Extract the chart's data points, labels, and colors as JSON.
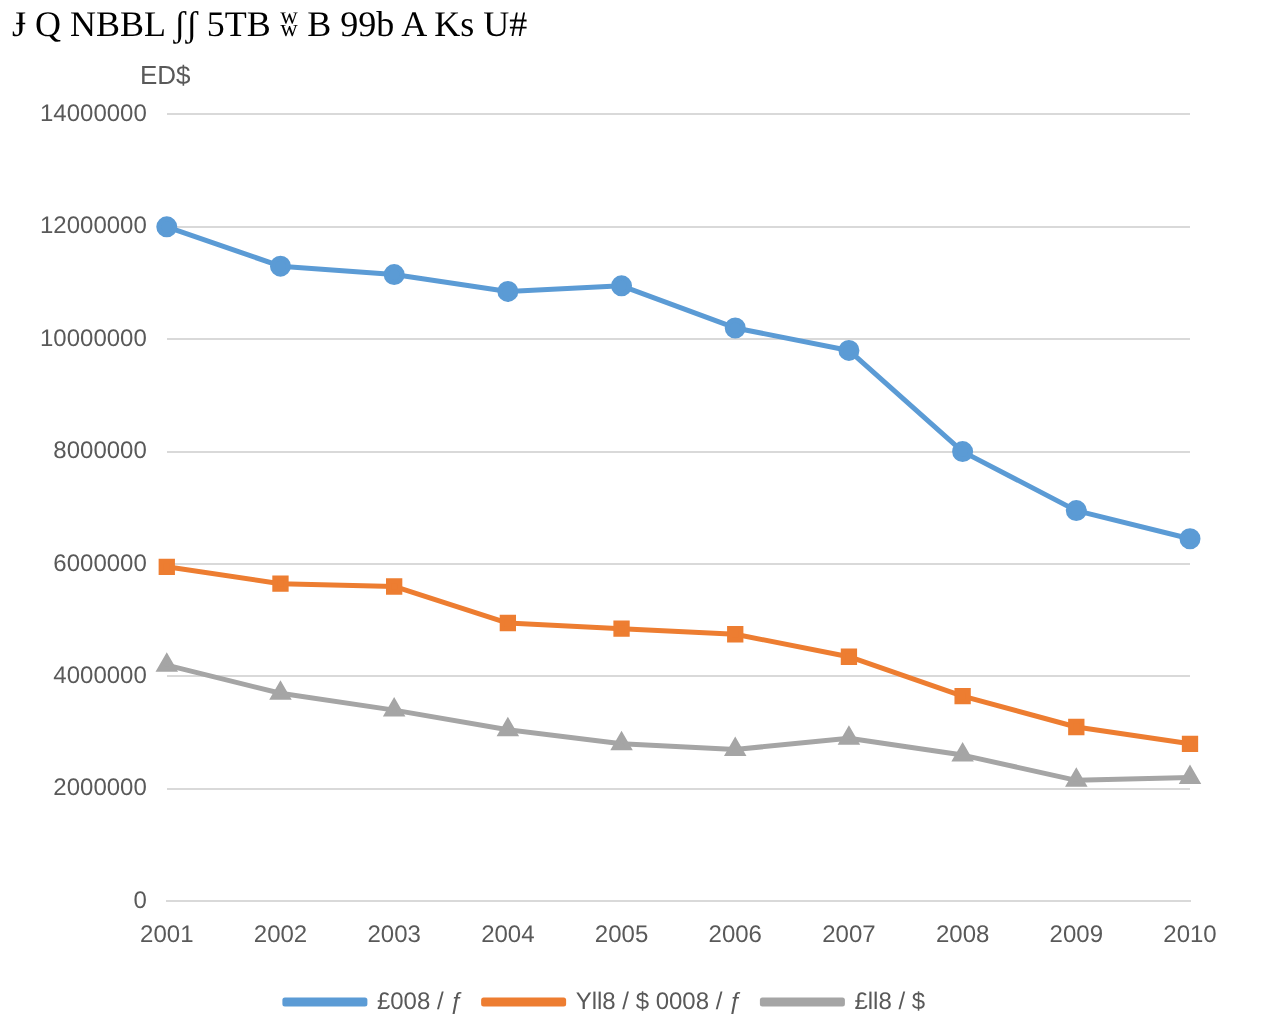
{
  "chart_data": {
    "type": "line",
    "title": "Ɉ Q NBBL ʃʃ 5TB ʬ B 99b A Ks U#",
    "ylabel": "ED$",
    "categories": [
      "2001",
      "2002",
      "2003",
      "2004",
      "2005",
      "2006",
      "2007",
      "2008",
      "2009",
      "2010"
    ],
    "series": [
      {
        "name": "£008 / ƒ",
        "color": "#5b9bd5",
        "marker": "circle",
        "values": [
          12000000,
          11300000,
          11150000,
          10850000,
          10950000,
          10200000,
          9800000,
          8000000,
          6950000,
          6450000
        ]
      },
      {
        "name": "Yll8 / $ 0008 / ƒ",
        "color": "#ed7d31",
        "marker": "square",
        "values": [
          5950000,
          5650000,
          5600000,
          4950000,
          4850000,
          4750000,
          4350000,
          3650000,
          3100000,
          2800000
        ]
      },
      {
        "name": "£ll8 / $",
        "color": "#a5a5a5",
        "marker": "triangle",
        "values": [
          4200000,
          3700000,
          3400000,
          3050000,
          2800000,
          2700000,
          2900000,
          2600000,
          2150000,
          2200000
        ]
      }
    ],
    "ylim": [
      0,
      14000000
    ],
    "yticks": [
      0,
      2000000,
      4000000,
      6000000,
      8000000,
      10000000,
      12000000,
      14000000
    ],
    "grid": "y",
    "legend": "bottom"
  }
}
